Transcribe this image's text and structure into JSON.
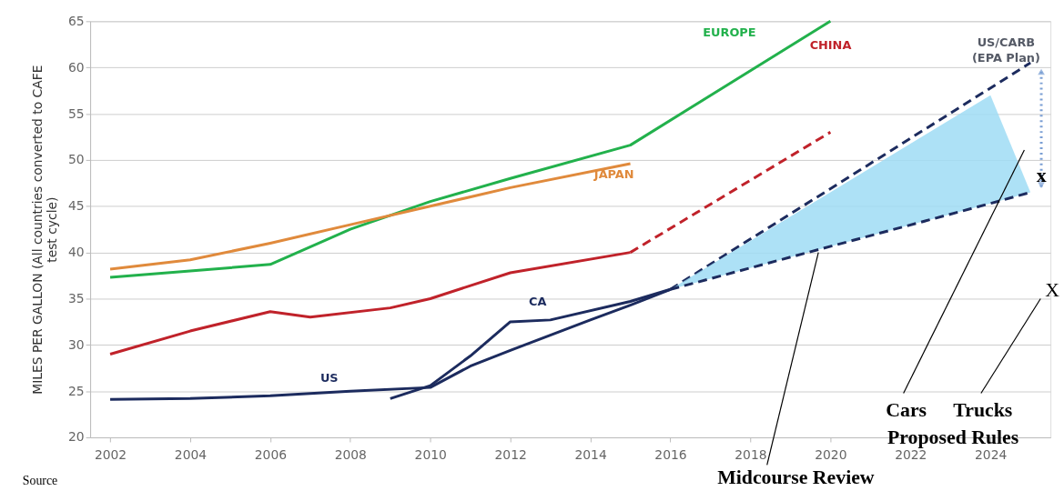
{
  "chart_data": {
    "type": "line",
    "ylabel": "MILES PER GALLON (All countries converted to CAFE test cycle)",
    "series": [
      {
        "name": "EUROPE",
        "color": "#22b14c",
        "x": [
          2002,
          2004,
          2006,
          2008,
          2010,
          2012,
          2015,
          2020
        ],
        "values": [
          37.3,
          38,
          38.7,
          42.5,
          45.5,
          48,
          51.6,
          65
        ]
      },
      {
        "name": "JAPAN",
        "color": "#e08a3c",
        "x": [
          2002,
          2004,
          2006,
          2008,
          2010,
          2012,
          2015
        ],
        "values": [
          38.2,
          39.2,
          41,
          43,
          45,
          47,
          49.6
        ]
      },
      {
        "name": "CHINA",
        "color": "#c0222a",
        "x": [
          2002,
          2004,
          2006,
          2007,
          2009,
          2010,
          2012,
          2015
        ],
        "values": [
          29,
          31.5,
          33.6,
          33,
          34,
          35,
          37.8,
          40
        ]
      },
      {
        "color": "#c0222a",
        "line_style": "dashed",
        "x": [
          2015,
          2020
        ],
        "values": [
          40,
          53
        ]
      },
      {
        "name": "US",
        "color": "#1c2b5e",
        "x": [
          2002,
          2004,
          2006,
          2008,
          2010,
          2011,
          2012,
          2014,
          2015,
          2016
        ],
        "values": [
          24.1,
          24.2,
          24.5,
          25,
          25.4,
          27.7,
          29.4,
          32.7,
          34.3,
          36
        ]
      },
      {
        "name": "CA",
        "color": "#1c2b5e",
        "x": [
          2009,
          2010,
          2011,
          2012,
          2013,
          2015,
          2016
        ],
        "values": [
          24.2,
          25.6,
          28.8,
          32.5,
          32.7,
          34.7,
          36
        ]
      },
      {
        "name": "US/CARB (EPA Plan)",
        "color": "#1c2b5e",
        "line_style": "dashed",
        "x": [
          2016,
          2025
        ],
        "values": [
          36,
          60.5
        ]
      },
      {
        "color": "#1c2b5e",
        "line_style": "dashed",
        "x": [
          2016,
          2024,
          2025
        ],
        "values": [
          36,
          45.3,
          46.5
        ],
        "lower": [
          36,
          45.3,
          46.5
        ],
        "upper": [
          36,
          57,
          46.5
        ]
      }
    ],
    "xlim": [
      2001.5,
      2025.5
    ],
    "xticks": [
      2002,
      2004,
      2006,
      2008,
      2010,
      2012,
      2014,
      2016,
      2018,
      2020,
      2022,
      2024
    ],
    "ylim": [
      20,
      65
    ],
    "yticks": [
      20,
      25,
      30,
      35,
      40,
      45,
      50,
      55,
      60,
      65
    ],
    "grid": "y",
    "marker": "none",
    "annotations": [
      "Source",
      {
        "text": "Midcourse Review",
        "x": 2019.7,
        "y": 40
      },
      "Cars",
      "Trucks",
      "Proposed Rules",
      "x",
      "X"
    ]
  }
}
